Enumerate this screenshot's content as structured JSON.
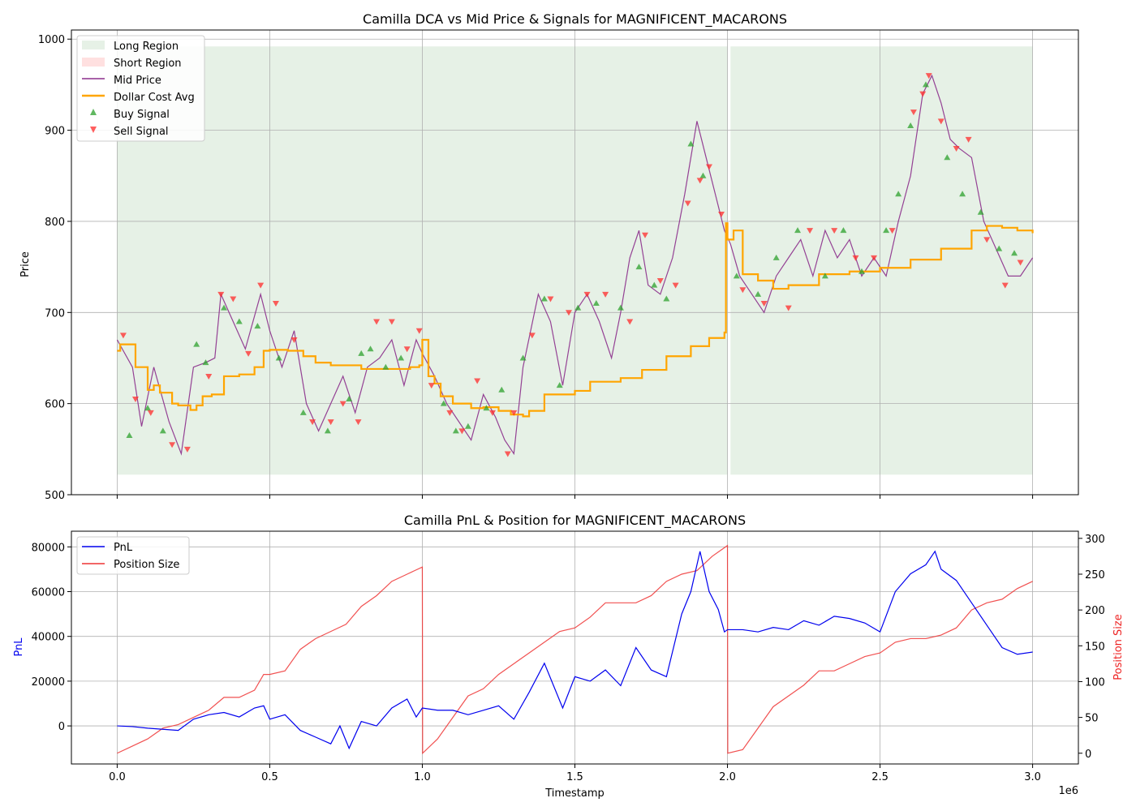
{
  "chart_data": [
    {
      "type": "line",
      "title": "Camilla DCA vs Mid Price & Signals for MAGNIFICENT_MACARONS",
      "xlabel": "",
      "ylabel": "Price",
      "xlim": [
        -150000,
        3150000
      ],
      "ylim": [
        500,
        1010
      ],
      "xticks": [
        0,
        500000,
        1000000,
        1500000,
        2000000,
        2500000,
        3000000
      ],
      "xtick_labels": [
        "0.0",
        "0.5",
        "1.0",
        "1.5",
        "2.0",
        "2.5",
        "3.0"
      ],
      "yticks": [
        500,
        600,
        700,
        800,
        900,
        1000
      ],
      "ytick_labels": [
        "500",
        "600",
        "700",
        "800",
        "900",
        "1000"
      ],
      "grid": true,
      "legend_position": "upper-left",
      "legend": [
        "Long Region",
        "Short Region",
        "Mid Price",
        "Dollar Cost Avg",
        "Buy Signal",
        "Sell Signal"
      ],
      "colors": {
        "long": "#2e8b2e",
        "short": "#ff9999",
        "mid": "#8b2e8b",
        "dca": "#ffa500",
        "buy": "#2ca02c",
        "sell": "#ff2a2a"
      },
      "regions": [
        {
          "type": "long",
          "x0": 0,
          "x1": 2000000,
          "y0": 522,
          "y1": 992
        },
        {
          "type": "long",
          "x0": 2010000,
          "x1": 3000000,
          "y0": 522,
          "y1": 992
        }
      ],
      "series": [
        {
          "name": "Mid Price",
          "x": [
            0,
            50000,
            80000,
            120000,
            170000,
            210000,
            250000,
            290000,
            320000,
            340000,
            380000,
            420000,
            470000,
            500000,
            540000,
            580000,
            620000,
            660000,
            700000,
            740000,
            780000,
            820000,
            860000,
            900000,
            940000,
            980000,
            1000000,
            1040000,
            1080000,
            1120000,
            1160000,
            1200000,
            1240000,
            1270000,
            1300000,
            1330000,
            1380000,
            1420000,
            1460000,
            1500000,
            1540000,
            1580000,
            1620000,
            1650000,
            1680000,
            1710000,
            1740000,
            1780000,
            1820000,
            1860000,
            1900000,
            1930000,
            1960000,
            1990000,
            2010000,
            2040000,
            2080000,
            2120000,
            2160000,
            2200000,
            2240000,
            2280000,
            2320000,
            2360000,
            2400000,
            2440000,
            2480000,
            2520000,
            2560000,
            2600000,
            2640000,
            2670000,
            2700000,
            2730000,
            2760000,
            2800000,
            2840000,
            2880000,
            2920000,
            2960000,
            3000000
          ],
          "y": [
            670,
            640,
            575,
            640,
            580,
            545,
            640,
            645,
            650,
            720,
            690,
            660,
            720,
            680,
            640,
            680,
            600,
            570,
            600,
            630,
            590,
            640,
            650,
            670,
            620,
            670,
            655,
            630,
            600,
            580,
            560,
            610,
            585,
            560,
            545,
            640,
            720,
            690,
            620,
            700,
            720,
            690,
            650,
            700,
            760,
            790,
            730,
            720,
            760,
            830,
            910,
            870,
            830,
            790,
            775,
            740,
            720,
            700,
            740,
            760,
            780,
            740,
            790,
            760,
            780,
            740,
            760,
            740,
            800,
            850,
            940,
            960,
            930,
            890,
            880,
            870,
            800,
            770,
            740,
            740,
            760
          ]
        },
        {
          "name": "Dollar Cost Avg",
          "x": [
            0,
            10000,
            50000,
            60000,
            100000,
            120000,
            140000,
            180000,
            200000,
            240000,
            260000,
            280000,
            310000,
            350000,
            400000,
            450000,
            480000,
            500000,
            560000,
            610000,
            650000,
            700000,
            800000,
            900000,
            960000,
            990000,
            1000000,
            1020000,
            1040000,
            1060000,
            1100000,
            1160000,
            1200000,
            1250000,
            1290000,
            1330000,
            1350000,
            1400000,
            1500000,
            1550000,
            1650000,
            1720000,
            1800000,
            1880000,
            1940000,
            1990000,
            1995000,
            2000000,
            2020000,
            2050000,
            2100000,
            2150000,
            2200000,
            2300000,
            2400000,
            2500000,
            2600000,
            2700000,
            2800000,
            2850000,
            2900000,
            2950000,
            3000000
          ],
          "y": [
            658,
            665,
            665,
            640,
            615,
            620,
            612,
            600,
            598,
            593,
            598,
            608,
            610,
            630,
            632,
            640,
            658,
            659,
            658,
            652,
            645,
            642,
            638,
            638,
            640,
            642,
            670,
            630,
            622,
            608,
            600,
            595,
            596,
            592,
            588,
            586,
            592,
            610,
            614,
            624,
            628,
            637,
            652,
            663,
            672,
            678,
            798,
            780,
            790,
            742,
            735,
            726,
            730,
            742,
            745,
            749,
            758,
            770,
            790,
            795,
            793,
            790,
            787
          ]
        }
      ],
      "buy_signals": {
        "x": [
          40000,
          100000,
          150000,
          260000,
          290000,
          350000,
          400000,
          460000,
          530000,
          610000,
          690000,
          760000,
          800000,
          830000,
          880000,
          930000,
          1070000,
          1110000,
          1150000,
          1210000,
          1260000,
          1330000,
          1400000,
          1450000,
          1510000,
          1570000,
          1650000,
          1710000,
          1760000,
          1800000,
          1880000,
          1920000,
          2030000,
          2100000,
          2160000,
          2230000,
          2320000,
          2380000,
          2440000,
          2520000,
          2560000,
          2600000,
          2650000,
          2720000,
          2770000,
          2830000,
          2890000,
          2940000
        ],
        "y": [
          565,
          595,
          570,
          665,
          645,
          705,
          690,
          685,
          650,
          590,
          570,
          605,
          655,
          660,
          640,
          650,
          600,
          570,
          575,
          595,
          615,
          650,
          715,
          620,
          705,
          710,
          705,
          750,
          730,
          715,
          885,
          850,
          740,
          720,
          760,
          790,
          740,
          790,
          745,
          790,
          830,
          905,
          950,
          870,
          830,
          810,
          770,
          765
        ]
      },
      "sell_signals": {
        "x": [
          20000,
          60000,
          110000,
          180000,
          230000,
          300000,
          340000,
          380000,
          430000,
          470000,
          520000,
          580000,
          640000,
          700000,
          740000,
          790000,
          850000,
          900000,
          950000,
          990000,
          1030000,
          1090000,
          1130000,
          1180000,
          1230000,
          1280000,
          1300000,
          1360000,
          1420000,
          1480000,
          1540000,
          1600000,
          1680000,
          1730000,
          1780000,
          1830000,
          1870000,
          1910000,
          1940000,
          1980000,
          2050000,
          2120000,
          2200000,
          2270000,
          2350000,
          2420000,
          2480000,
          2540000,
          2610000,
          2640000,
          2660000,
          2700000,
          2750000,
          2790000,
          2850000,
          2910000,
          2960000
        ],
        "y": [
          675,
          605,
          590,
          555,
          550,
          630,
          720,
          715,
          655,
          730,
          710,
          670,
          580,
          580,
          600,
          580,
          690,
          690,
          660,
          680,
          620,
          590,
          570,
          625,
          590,
          545,
          590,
          675,
          715,
          700,
          720,
          720,
          690,
          785,
          735,
          730,
          820,
          845,
          860,
          808,
          725,
          710,
          705,
          790,
          790,
          760,
          760,
          790,
          920,
          940,
          960,
          910,
          880,
          890,
          780,
          730,
          755
        ]
      }
    },
    {
      "type": "line",
      "title": "Camilla PnL & Position for MAGNIFICENT_MACARONS",
      "xlabel": "Timestamp",
      "x_offset_label": "1e6",
      "ylabel": "PnL",
      "ylabel_right": "Position Size",
      "xlim": [
        -150000,
        3150000
      ],
      "ylim": [
        -17000,
        87000
      ],
      "ylim_right": [
        -15,
        310
      ],
      "xticks": [
        0,
        500000,
        1000000,
        1500000,
        2000000,
        2500000,
        3000000
      ],
      "xtick_labels": [
        "0.0",
        "0.5",
        "1.0",
        "1.5",
        "2.0",
        "2.5",
        "3.0"
      ],
      "yticks": [
        0,
        20000,
        40000,
        60000,
        80000
      ],
      "ytick_labels": [
        "0",
        "20000",
        "40000",
        "60000",
        "80000"
      ],
      "yticks_right": [
        0,
        50,
        100,
        150,
        200,
        250,
        300
      ],
      "ytick_labels_right": [
        "0",
        "50",
        "100",
        "150",
        "200",
        "250",
        "300"
      ],
      "grid": true,
      "legend_position": "upper-left",
      "legend": [
        "PnL",
        "Position Size"
      ],
      "colors": {
        "pnl": "#0000ee",
        "position": "#ee3333"
      },
      "series": [
        {
          "name": "PnL",
          "axis": "left",
          "x": [
            0,
            50000,
            100000,
            150000,
            200000,
            250000,
            300000,
            350000,
            400000,
            450000,
            480000,
            500000,
            550000,
            600000,
            650000,
            700000,
            730000,
            760000,
            800000,
            850000,
            900000,
            950000,
            980000,
            1000000,
            1050000,
            1100000,
            1150000,
            1200000,
            1250000,
            1300000,
            1350000,
            1400000,
            1430000,
            1460000,
            1500000,
            1550000,
            1600000,
            1650000,
            1700000,
            1750000,
            1800000,
            1850000,
            1880000,
            1910000,
            1940000,
            1970000,
            1990000,
            2000000,
            2050000,
            2100000,
            2150000,
            2200000,
            2250000,
            2300000,
            2350000,
            2400000,
            2450000,
            2500000,
            2550000,
            2600000,
            2650000,
            2680000,
            2700000,
            2750000,
            2800000,
            2850000,
            2900000,
            2950000,
            3000000
          ],
          "y": [
            0,
            -300,
            -1000,
            -1500,
            -2000,
            3000,
            5000,
            6000,
            4000,
            8000,
            9000,
            3000,
            5000,
            -2000,
            -5000,
            -8000,
            0,
            -10000,
            2000,
            0,
            8000,
            12000,
            4000,
            8000,
            7000,
            7000,
            5000,
            7000,
            9000,
            3000,
            15000,
            28000,
            18000,
            8000,
            22000,
            20000,
            25000,
            18000,
            35000,
            25000,
            22000,
            50000,
            60000,
            78000,
            60000,
            52000,
            42000,
            43000,
            43000,
            42000,
            44000,
            43000,
            47000,
            45000,
            49000,
            48000,
            46000,
            42000,
            60000,
            68000,
            72000,
            78000,
            70000,
            65000,
            55000,
            45000,
            35000,
            32000,
            33000
          ]
        },
        {
          "name": "Position Size",
          "axis": "right",
          "x": [
            0,
            50000,
            100000,
            150000,
            200000,
            250000,
            300000,
            350000,
            400000,
            450000,
            480000,
            500000,
            550000,
            600000,
            650000,
            700000,
            750000,
            800000,
            850000,
            900000,
            950000,
            1000000,
            1001000,
            1050000,
            1100000,
            1150000,
            1200000,
            1250000,
            1300000,
            1350000,
            1400000,
            1450000,
            1500000,
            1550000,
            1600000,
            1650000,
            1700000,
            1750000,
            1800000,
            1850000,
            1900000,
            1950000,
            2000000,
            2001000,
            2050000,
            2100000,
            2150000,
            2200000,
            2250000,
            2300000,
            2350000,
            2400000,
            2450000,
            2500000,
            2550000,
            2600000,
            2650000,
            2700000,
            2750000,
            2800000,
            2850000,
            2900000,
            2950000,
            3000000
          ],
          "y": [
            0,
            10,
            20,
            35,
            40,
            50,
            60,
            78,
            78,
            88,
            110,
            110,
            115,
            145,
            160,
            170,
            180,
            205,
            220,
            240,
            250,
            260,
            0,
            20,
            50,
            80,
            90,
            110,
            125,
            140,
            155,
            170,
            175,
            190,
            210,
            210,
            210,
            220,
            240,
            250,
            255,
            275,
            290,
            0,
            5,
            35,
            65,
            80,
            95,
            115,
            115,
            125,
            135,
            140,
            155,
            160,
            160,
            165,
            175,
            200,
            210,
            215,
            230,
            240
          ]
        }
      ]
    }
  ]
}
